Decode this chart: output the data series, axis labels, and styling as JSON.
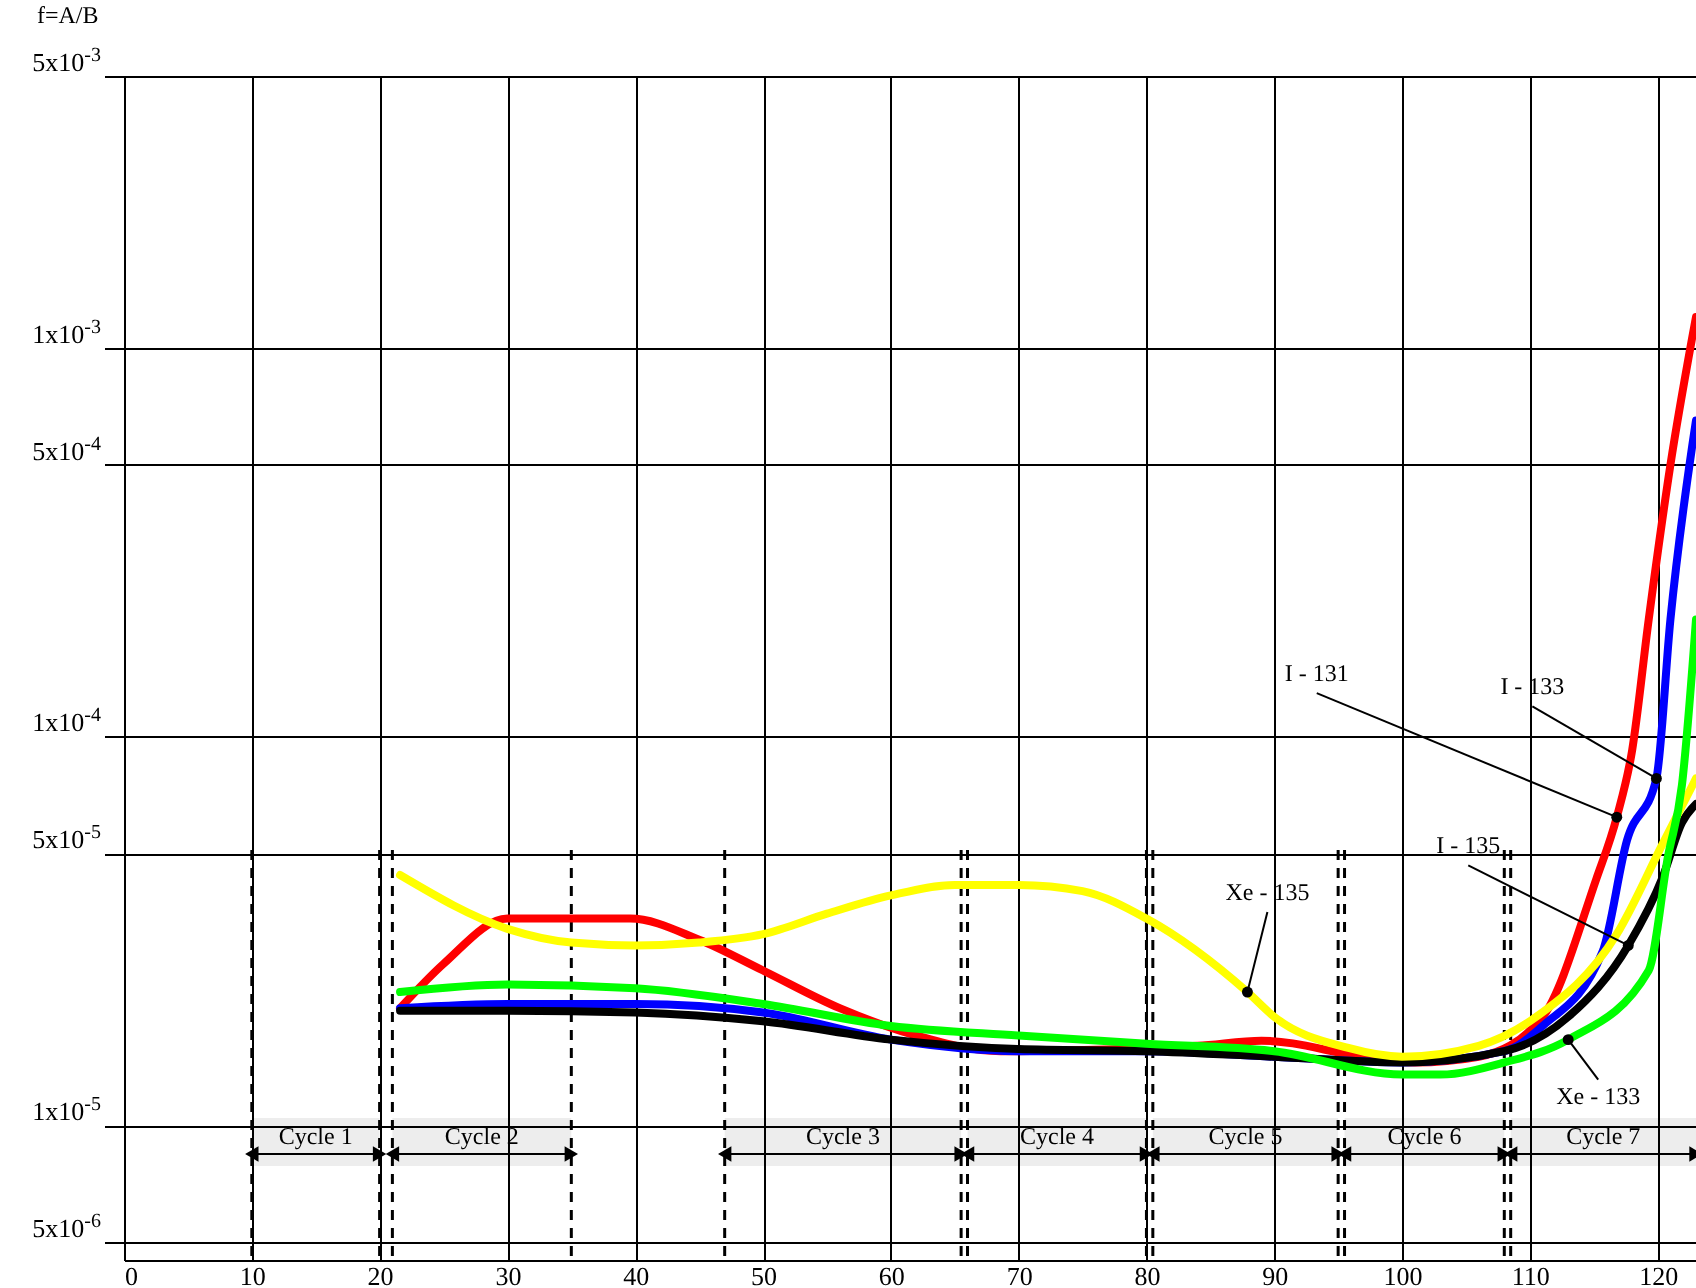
{
  "chart_data": {
    "type": "line",
    "ylabel": "f=A/B",
    "log": "y",
    "grid": true,
    "line_style": "solid",
    "marker": "none",
    "xlim": [
      0,
      123
    ],
    "xticks": [
      0,
      10,
      20,
      30,
      40,
      50,
      60,
      70,
      80,
      90,
      100,
      110,
      120
    ],
    "ylim": [
      4.5e-06,
      0.005
    ],
    "yticks": [
      {
        "value": 5e-06,
        "label": "5x10$^{-6}$"
      },
      {
        "value": 1e-05,
        "label": "1x10$^{-5}$"
      },
      {
        "value": 5e-05,
        "label": "5x10$^{-5}$"
      },
      {
        "value": 0.0001,
        "label": "1x10$^{-4}$"
      },
      {
        "value": 0.0005,
        "label": "5x10$^{-4}$"
      },
      {
        "value": 0.001,
        "label": "1x10$^{-3}$"
      },
      {
        "value": 0.005,
        "label": "5x10$^{-3}$"
      }
    ],
    "series": [
      {
        "color": "#ff0000",
        "x": [
          21.6,
          25,
          30,
          35.7,
          39.6,
          45,
          50,
          56,
          62,
          68.6,
          84,
          89,
          97,
          101,
          106,
          111,
          115.2,
          116.8,
          118,
          119.3,
          121,
          123
        ],
        "values": [
          2e-05,
          2.6e-05,
          3.4e-05,
          3.4e-05,
          3.4e-05,
          3e-05,
          2.5e-05,
          2e-05,
          1.7e-05,
          1.55e-05,
          1.6e-05,
          1.65e-05,
          1.5e-05,
          1.45e-05,
          1.5e-05,
          1.9e-05,
          4.3e-05,
          6.2e-05,
          9.2e-05,
          0.0002,
          0.0005,
          0.0012
        ]
      },
      {
        "color": "#0000ff",
        "x": [
          21.6,
          30,
          40,
          50,
          60,
          70,
          80,
          90,
          100,
          108,
          111,
          115.7,
          117.6,
          119.9,
          121,
          123
        ],
        "values": [
          2e-05,
          2.05e-05,
          2.05e-05,
          1.95e-05,
          1.66e-05,
          1.55e-05,
          1.55e-05,
          1.5e-05,
          1.45e-05,
          1.55e-05,
          1.8e-05,
          2.8e-05,
          5.4e-05,
          7.8e-05,
          0.0002,
          0.00065
        ]
      },
      {
        "color": "#000000",
        "x": [
          21.6,
          30,
          40,
          50,
          60,
          70,
          80,
          90,
          100,
          108,
          113,
          117.7,
          120.4,
          121.9,
          123
        ],
        "values": [
          1.97e-05,
          1.97e-05,
          1.95e-05,
          1.85e-05,
          1.66e-05,
          1.57e-05,
          1.55e-05,
          1.5e-05,
          1.45e-05,
          1.55e-05,
          1.9e-05,
          2.9e-05,
          4.35e-05,
          6e-05,
          6.7e-05
        ]
      },
      {
        "color": "#ffff00",
        "x": [
          21.6,
          30,
          35,
          40,
          45,
          50,
          55,
          60,
          65,
          70,
          75,
          80,
          87.9,
          90,
          95.8,
          100,
          106,
          110.5,
          116.8,
          120.4,
          123
        ],
        "values": [
          4.4e-05,
          3.2e-05,
          2.95e-05,
          2.9e-05,
          2.95e-05,
          3.1e-05,
          3.5e-05,
          3.9e-05,
          4.15e-05,
          4.15e-05,
          4e-05,
          3.4e-05,
          2.2e-05,
          1.9e-05,
          1.58e-05,
          1.5e-05,
          1.6e-05,
          1.9e-05,
          3.1e-05,
          5.3e-05,
          7.8e-05
        ]
      },
      {
        "color": "#00ff00",
        "x": [
          21.6,
          30,
          40,
          50,
          60,
          70,
          80,
          90,
          100,
          103,
          108,
          113,
          119.3,
          120.8,
          121.9,
          123
        ],
        "values": [
          2.2e-05,
          2.3e-05,
          2.25e-05,
          2.05e-05,
          1.8e-05,
          1.7e-05,
          1.62e-05,
          1.55e-05,
          1.35e-05,
          1.35e-05,
          1.45e-05,
          1.66e-05,
          2.5e-05,
          4.9e-05,
          7.5e-05,
          0.0002
        ]
      }
    ],
    "annotations": [
      {
        "text": "I - 131",
        "x": 116.8,
        "y": 6.2e-05
      },
      {
        "text": "I - 133",
        "x": 119.9,
        "y": 7.8e-05
      },
      {
        "text": "I - 135",
        "x": 117.7,
        "y": 2.9e-05
      },
      {
        "text": "Xe - 135",
        "x": 87.9,
        "y": 2.2e-05
      },
      {
        "text": "Xe - 133",
        "x": 113,
        "y": 1.66e-05
      }
    ],
    "ref_lines": [
      {
        "axis": "x",
        "value": 10,
        "line_style": "dashed"
      },
      {
        "axis": "x",
        "value": 20,
        "line_style": "dashed"
      },
      {
        "axis": "x",
        "value": 21,
        "line_style": "dashed"
      },
      {
        "axis": "x",
        "value": 35,
        "line_style": "dashed"
      },
      {
        "axis": "x",
        "value": 47,
        "line_style": "dashed"
      },
      {
        "axis": "x",
        "value": 65.5,
        "line_style": "dashed"
      },
      {
        "axis": "x",
        "value": 66,
        "line_style": "dashed"
      },
      {
        "axis": "x",
        "value": 80,
        "line_style": "dashed"
      },
      {
        "axis": "x",
        "value": 80.5,
        "line_style": "dashed"
      },
      {
        "axis": "x",
        "value": 95,
        "line_style": "dashed"
      },
      {
        "axis": "x",
        "value": 95.5,
        "line_style": "dashed"
      },
      {
        "axis": "x",
        "value": 108,
        "line_style": "dashed"
      },
      {
        "axis": "x",
        "value": 108.5,
        "line_style": "dashed"
      }
    ],
    "bands": [
      {
        "axis": "x",
        "from": 10,
        "to": 20,
        "label": "Cycle 1"
      },
      {
        "axis": "x",
        "from": 21,
        "to": 35,
        "label": "Cycle 2"
      },
      {
        "axis": "x",
        "from": 47,
        "to": 65.5,
        "label": "Cycle 3"
      },
      {
        "axis": "x",
        "from": 66,
        "to": 80,
        "label": "Cycle 4"
      },
      {
        "axis": "x",
        "from": 80.5,
        "to": 95,
        "label": "Cycle 5"
      },
      {
        "axis": "x",
        "from": 95.5,
        "to": 108,
        "label": "Cycle 6"
      },
      {
        "axis": "x",
        "from": 108.5,
        "to": 123,
        "label": "Cycle 7"
      }
    ]
  }
}
